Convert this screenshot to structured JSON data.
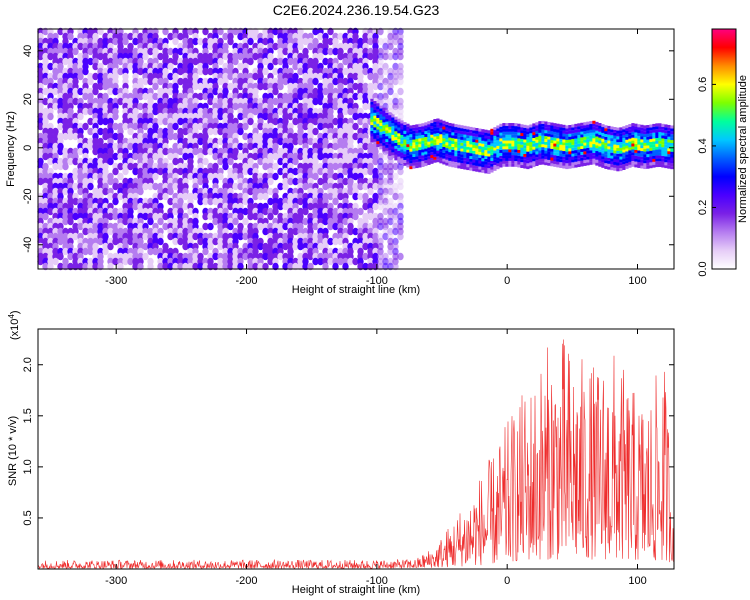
{
  "figure": {
    "title": "C2E6.2024.236.19.54.G23"
  },
  "colors": {
    "snr_line": "#ee2c2c",
    "colormap": [
      "#ffffff",
      "#e6cdf7",
      "#b57cf0",
      "#7a21e6",
      "#4a00ff",
      "#0000ff",
      "#0060ff",
      "#00c8ff",
      "#00ff9c",
      "#7dff00",
      "#ffff00",
      "#ff8c00",
      "#ff0000",
      "#ff007f"
    ]
  },
  "chart_data": [
    {
      "type": "heatmap",
      "title": "C2E6.2024.236.19.54.G23",
      "xlabel": "Height of straight line (km)",
      "ylabel": "Frequency (Hz)",
      "xlim": [
        -360,
        128
      ],
      "ylim": [
        -50,
        49
      ],
      "xticks": [
        -300,
        -200,
        -100,
        0,
        100
      ],
      "yticks": [
        -40,
        -20,
        0,
        20,
        40
      ],
      "noise_region_x": [
        -360,
        -80
      ],
      "signal_ridge": {
        "x": [
          -105,
          -95,
          -85,
          -75,
          -65,
          -55,
          -45,
          -35,
          -25,
          -15,
          -5,
          5,
          15,
          25,
          35,
          45,
          55,
          65,
          75,
          85,
          95,
          105,
          115,
          125
        ],
        "y": [
          12,
          8,
          4,
          1,
          2,
          4,
          2,
          1,
          0,
          -1,
          2,
          2,
          1,
          3,
          2,
          1,
          2,
          3,
          1,
          0,
          2,
          1,
          2,
          1
        ]
      },
      "colorbar": {
        "label": "Normalized spectral amplitude",
        "range": [
          0.0,
          0.78
        ],
        "ticks": [
          "0.0",
          "0.2",
          "0.4",
          "0.6"
        ]
      }
    },
    {
      "type": "line",
      "xlabel": "Height of straight line (km)",
      "ylabel": "SNR (10 * v/v)",
      "y_multiplier": "(x10",
      "y_multiplier_exp": "4",
      "xlim": [
        -360,
        128
      ],
      "ylim": [
        0,
        23500
      ],
      "xticks": [
        -300,
        -200,
        -100,
        0,
        100
      ],
      "yticks": [
        "0.5",
        "1.0",
        "1.5",
        "2.0"
      ],
      "ytick_values": [
        5000,
        10000,
        15000,
        20000
      ],
      "envelope": {
        "x": [
          -360,
          -100,
          -70,
          -55,
          -40,
          -25,
          -10,
          0,
          10,
          20,
          30,
          40,
          50,
          60,
          70,
          80,
          90,
          100,
          110,
          120,
          128
        ],
        "baseline": [
          200,
          200,
          250,
          400,
          700,
          1100,
          1600,
          2200,
          2600,
          2900,
          3100,
          3000,
          3100,
          3200,
          3000,
          3000,
          2800,
          2600,
          2500,
          2300,
          2200
        ],
        "peak": [
          900,
          900,
          1000,
          2400,
          5200,
          8500,
          11500,
          14500,
          17000,
          19000,
          22000,
          23500,
          22000,
          20500,
          20000,
          22000,
          19500,
          17000,
          17500,
          21000,
          9500
        ]
      }
    }
  ]
}
